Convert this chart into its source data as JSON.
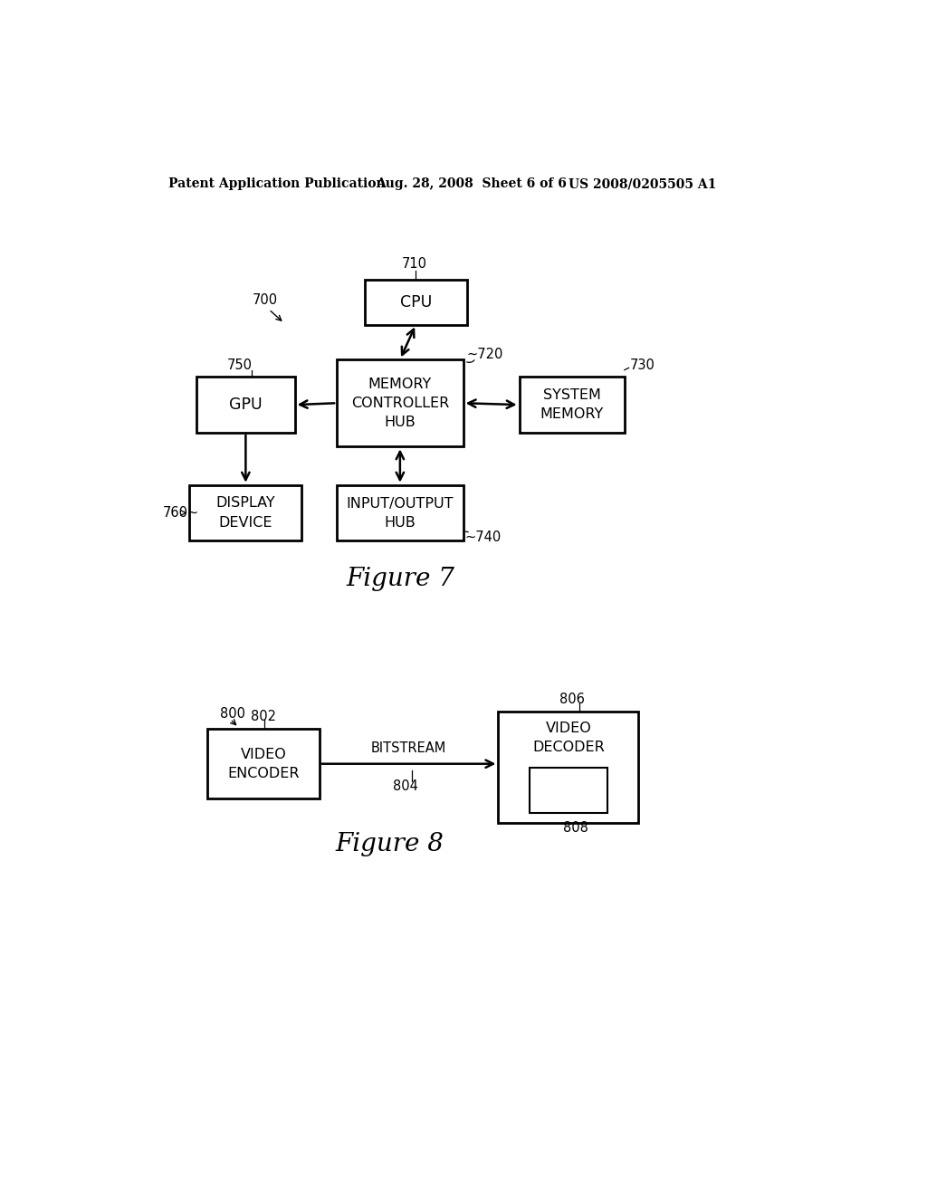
{
  "header_left": "Patent Application Publication",
  "header_mid": "Aug. 28, 2008  Sheet 6 of 6",
  "header_right": "US 2008/0205505 A1",
  "fig7_title": "Figure 7",
  "fig8_title": "Figure 8",
  "bg_color": "#ffffff",
  "text_color": "#000000",
  "fig7": {
    "label": "700",
    "cpu_label": "710",
    "cpu_text": "CPU",
    "mch_label": "~720",
    "mch_text": "MEMORY\nCONTROLLER\nHUB",
    "smem_label": "730",
    "smem_text": "SYSTEM\nMEMORY",
    "ioh_label": "~740",
    "ioh_text": "INPUT/OUTPUT\nHUB",
    "gpu_label": "750",
    "gpu_text": "GPU",
    "display_label": "760~",
    "display_text": "DISPLAY\nDEVICE"
  },
  "fig8": {
    "label": "800",
    "enc_label": "802",
    "enc_text": "VIDEO\nENCODER",
    "bitstream_label": "804",
    "bitstream_text": "BITSTREAM",
    "dec_label": "806",
    "dec_text": "VIDEO\nDECODER",
    "inner_label": "808"
  }
}
